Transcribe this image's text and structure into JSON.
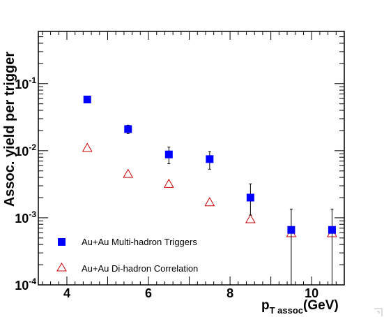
{
  "chart_data": {
    "type": "scatter",
    "xlabel": {
      "main": "p",
      "sub": "T assoc",
      "unit": "(GeV)"
    },
    "ylabel": "Assoc. yield per trigger",
    "xlim": [
      3.3,
      10.8
    ],
    "ylim": [
      0.0001,
      0.6
    ],
    "yscale": "log",
    "x_ticks": [
      4,
      6,
      8,
      10
    ],
    "y_ticks": [
      {
        "value": 0.0001,
        "base": "10",
        "exp": "-4"
      },
      {
        "value": 0.001,
        "base": "10",
        "exp": "-3"
      },
      {
        "value": 0.01,
        "base": "10",
        "exp": "-2"
      },
      {
        "value": 0.1,
        "base": "10",
        "exp": "-1"
      }
    ],
    "legend_position": "bottom-left",
    "series": [
      {
        "name": "Au+Au Multi-hadron Triggers",
        "marker": "filled-square",
        "color": "#0000ff",
        "x": [
          4.5,
          5.5,
          6.5,
          7.5,
          8.5,
          9.5,
          10.5
        ],
        "y": [
          0.058,
          0.021,
          0.0088,
          0.0075,
          0.002,
          0.00066,
          0.00066
        ],
        "yerr_low": [
          0.052,
          0.018,
          0.0064,
          0.0053,
          0.0011,
          0.0001,
          0.0001
        ],
        "yerr_high": [
          0.065,
          0.024,
          0.0113,
          0.0097,
          0.0032,
          0.00135,
          0.00135
        ]
      },
      {
        "name": "Au+Au Di-hadron Correlation",
        "marker": "open-triangle",
        "color": "#cc0000",
        "x": [
          4.5,
          5.5,
          6.5,
          7.5,
          8.5,
          9.5,
          10.5
        ],
        "y": [
          0.011,
          0.0045,
          0.0032,
          0.0017,
          0.00095,
          0.00059,
          0.00059
        ]
      }
    ]
  }
}
